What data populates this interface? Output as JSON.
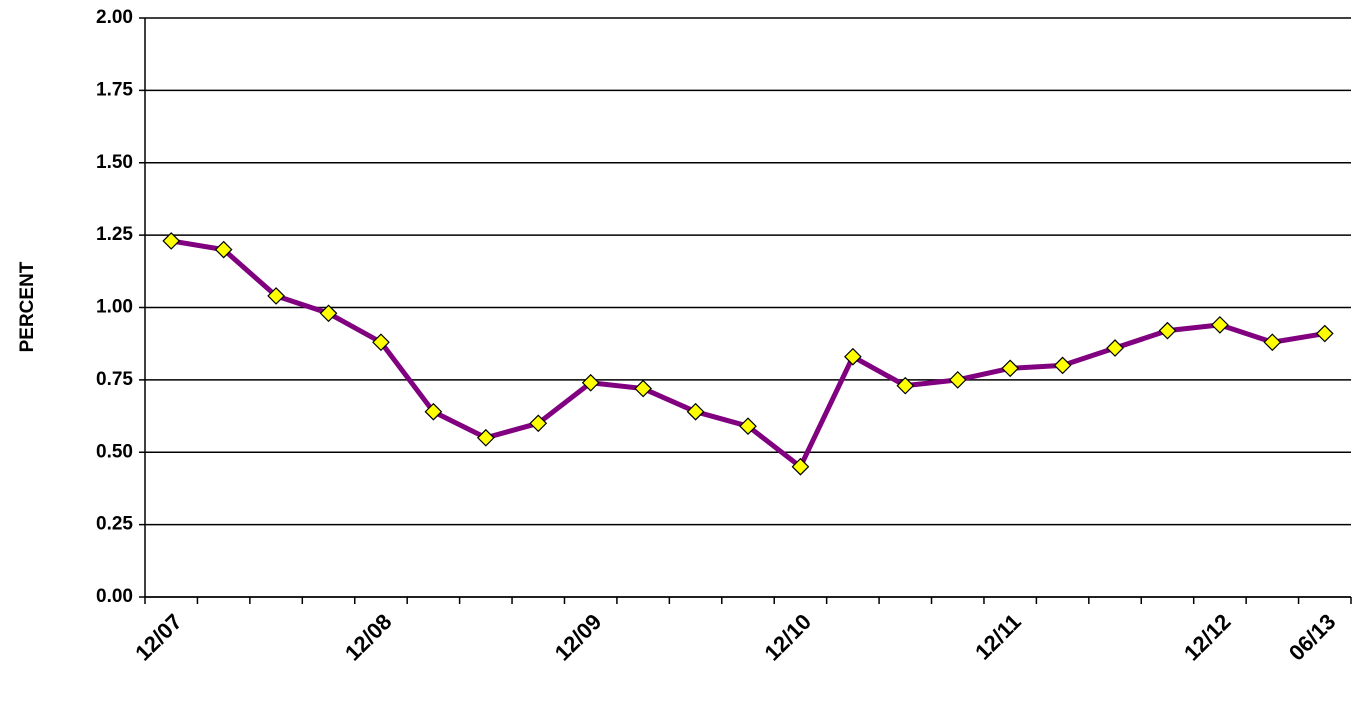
{
  "chart_data": {
    "type": "line",
    "y_label": "PERCENT",
    "categories": [
      "12/07",
      null,
      null,
      null,
      "12/08",
      null,
      null,
      null,
      "12/09",
      null,
      null,
      null,
      "12/10",
      null,
      null,
      null,
      "12/11",
      null,
      null,
      null,
      "12/12",
      null,
      "06/13"
    ],
    "series": [
      {
        "color": "#800080",
        "marker_color": "#ffff00",
        "values": [
          1.23,
          1.2,
          1.04,
          0.98,
          0.88,
          0.64,
          0.55,
          0.6,
          0.74,
          0.72,
          0.64,
          0.59,
          0.45,
          0.83,
          0.73,
          0.75,
          0.79,
          0.8,
          0.86,
          0.92,
          0.94,
          0.88,
          0.91
        ]
      }
    ],
    "ylim": [
      0,
      2
    ],
    "yticks": [
      {
        "value": 0,
        "label": "0.00"
      },
      {
        "value": 0.25,
        "label": "0.25"
      },
      {
        "value": 0.5,
        "label": "0.50"
      },
      {
        "value": 0.75,
        "label": "0.75"
      },
      {
        "value": 1,
        "label": "1.00"
      },
      {
        "value": 1.25,
        "label": "1.25"
      },
      {
        "value": 1.5,
        "label": "1.50"
      },
      {
        "value": 1.75,
        "label": "1.75"
      },
      {
        "value": 2,
        "label": "2.00"
      }
    ],
    "grid": true
  }
}
